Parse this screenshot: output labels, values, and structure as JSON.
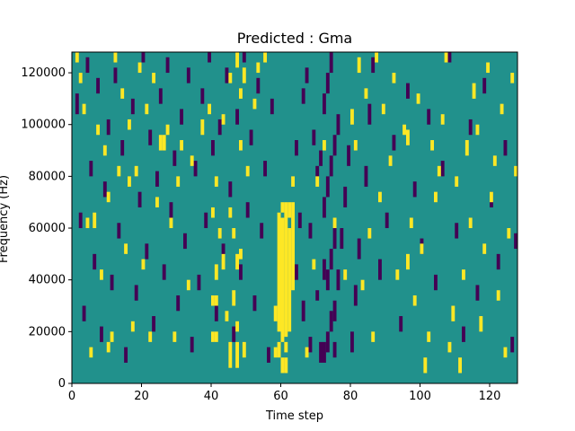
{
  "chart_data": {
    "type": "heatmap",
    "title": "Predicted : Gma",
    "xlabel": "Time step",
    "ylabel": "Frequency (Hz)",
    "xlim": [
      0,
      128
    ],
    "ylim": [
      0,
      128000
    ],
    "x_ticks": [
      0,
      20,
      40,
      60,
      80,
      100,
      120
    ],
    "x_tick_labels": [
      "0",
      "20",
      "40",
      "60",
      "80",
      "100",
      "120"
    ],
    "y_ticks": [
      0,
      20000,
      40000,
      60000,
      80000,
      100000,
      120000
    ],
    "y_tick_labels": [
      "0",
      "20000",
      "40000",
      "60000",
      "80000",
      "100000",
      "120000"
    ],
    "grid": false,
    "legend": "none",
    "colormap": "viridis",
    "values_description": "binary mask: background 0 (teal), predicted positive +1 (yellow), predicted negative -1 (purple)",
    "colors": {
      "background": "#21918c",
      "high": "#fde725",
      "low": "#440154"
    },
    "grid_shape": {
      "time_steps": 128,
      "frequency_bins": 64,
      "bin_hz": 2000
    },
    "high_cells": [
      [
        60,
        2,
        5
      ],
      [
        61,
        2,
        5
      ],
      [
        61,
        6,
        8
      ],
      [
        61,
        9,
        35
      ],
      [
        62,
        10,
        30
      ],
      [
        62,
        32,
        35
      ],
      [
        60,
        8,
        32
      ],
      [
        59,
        5,
        8
      ],
      [
        59,
        10,
        33
      ],
      [
        58,
        5,
        7
      ],
      [
        58,
        12,
        15
      ],
      [
        63,
        18,
        35
      ],
      [
        63,
        38,
        40
      ],
      [
        60,
        33,
        35
      ],
      [
        40,
        8,
        10
      ],
      [
        41,
        8,
        10
      ],
      [
        40,
        15,
        17
      ],
      [
        41,
        15,
        17
      ],
      [
        44,
        12,
        14
      ],
      [
        45,
        3,
        8
      ],
      [
        46,
        15,
        18
      ],
      [
        47,
        3,
        8
      ],
      [
        49,
        5,
        8
      ],
      [
        47,
        22,
        25
      ],
      [
        48,
        24,
        26
      ],
      [
        41,
        20,
        23
      ],
      [
        42,
        28,
        30
      ],
      [
        43,
        22,
        25
      ],
      [
        45,
        32,
        34
      ],
      [
        46,
        28,
        30
      ],
      [
        47,
        10,
        12
      ],
      [
        37,
        48,
        51
      ],
      [
        39,
        52,
        54
      ],
      [
        40,
        32,
        34
      ],
      [
        41,
        38,
        40
      ],
      [
        43,
        50,
        52
      ],
      [
        45,
        58,
        60
      ],
      [
        47,
        61,
        64
      ],
      [
        48,
        55,
        57
      ],
      [
        48,
        45,
        47
      ],
      [
        49,
        58,
        61
      ],
      [
        50,
        40,
        42
      ],
      [
        52,
        53,
        55
      ],
      [
        53,
        60,
        62
      ],
      [
        55,
        62,
        64
      ],
      [
        4,
        30,
        32
      ],
      [
        5,
        5,
        7
      ],
      [
        6,
        30,
        33
      ],
      [
        8,
        20,
        22
      ],
      [
        10,
        35,
        37
      ],
      [
        11,
        8,
        10
      ],
      [
        15,
        25,
        27
      ],
      [
        17,
        10,
        12
      ],
      [
        18,
        40,
        42
      ],
      [
        20,
        22,
        24
      ],
      [
        22,
        8,
        10
      ],
      [
        24,
        34,
        36
      ],
      [
        25,
        45,
        48
      ],
      [
        26,
        45,
        48
      ],
      [
        27,
        48,
        50
      ],
      [
        28,
        30,
        32
      ],
      [
        29,
        8,
        10
      ],
      [
        30,
        38,
        40
      ],
      [
        31,
        45,
        47
      ],
      [
        33,
        18,
        20
      ],
      [
        34,
        42,
        44
      ],
      [
        10,
        6,
        8
      ],
      [
        12,
        62,
        64
      ],
      [
        14,
        55,
        57
      ],
      [
        16,
        49,
        51
      ],
      [
        19,
        60,
        62
      ],
      [
        21,
        52,
        54
      ],
      [
        23,
        58,
        60
      ],
      [
        1,
        62,
        64
      ],
      [
        2,
        58,
        60
      ],
      [
        3,
        52,
        54
      ],
      [
        7,
        48,
        50
      ],
      [
        9,
        44,
        46
      ],
      [
        13,
        40,
        42
      ],
      [
        16,
        38,
        40
      ],
      [
        67,
        5,
        7
      ],
      [
        69,
        22,
        24
      ],
      [
        70,
        38,
        40
      ],
      [
        72,
        45,
        47
      ],
      [
        75,
        30,
        32
      ],
      [
        78,
        20,
        22
      ],
      [
        81,
        45,
        47
      ],
      [
        83,
        18,
        20
      ],
      [
        85,
        28,
        30
      ],
      [
        86,
        8,
        10
      ],
      [
        88,
        35,
        37
      ],
      [
        91,
        42,
        44
      ],
      [
        93,
        20,
        22
      ],
      [
        95,
        48,
        50
      ],
      [
        97,
        30,
        32
      ],
      [
        80,
        50,
        53
      ],
      [
        82,
        60,
        63
      ],
      [
        84,
        55,
        57
      ],
      [
        87,
        62,
        64
      ],
      [
        89,
        52,
        54
      ],
      [
        92,
        58,
        60
      ],
      [
        96,
        46,
        49
      ],
      [
        99,
        54,
        56
      ],
      [
        98,
        15,
        17
      ],
      [
        100,
        25,
        27
      ],
      [
        102,
        8,
        10
      ],
      [
        104,
        35,
        37
      ],
      [
        105,
        40,
        42
      ],
      [
        106,
        50,
        52
      ],
      [
        107,
        62,
        64
      ],
      [
        108,
        6,
        8
      ],
      [
        109,
        12,
        15
      ],
      [
        110,
        38,
        40
      ],
      [
        111,
        2,
        5
      ],
      [
        112,
        20,
        22
      ],
      [
        113,
        44,
        47
      ],
      [
        114,
        30,
        32
      ],
      [
        115,
        55,
        58
      ],
      [
        116,
        48,
        50
      ],
      [
        118,
        25,
        27
      ],
      [
        119,
        60,
        62
      ],
      [
        120,
        35,
        37
      ],
      [
        121,
        42,
        44
      ],
      [
        122,
        16,
        18
      ],
      [
        123,
        52,
        54
      ],
      [
        124,
        5,
        7
      ],
      [
        125,
        28,
        30
      ],
      [
        126,
        58,
        60
      ],
      [
        127,
        40,
        42
      ],
      [
        96,
        22,
        25
      ],
      [
        101,
        2,
        5
      ],
      [
        103,
        45,
        47
      ],
      [
        117,
        10,
        13
      ]
    ],
    "low_cells": [
      [
        71,
        4,
        8
      ],
      [
        72,
        4,
        8
      ],
      [
        73,
        6,
        10
      ],
      [
        74,
        10,
        14
      ],
      [
        75,
        12,
        16
      ],
      [
        70,
        16,
        18
      ],
      [
        73,
        18,
        22
      ],
      [
        74,
        22,
        26
      ],
      [
        75,
        26,
        30
      ],
      [
        72,
        32,
        36
      ],
      [
        73,
        36,
        40
      ],
      [
        74,
        40,
        44
      ],
      [
        75,
        44,
        48
      ],
      [
        76,
        48,
        52
      ],
      [
        72,
        52,
        56
      ],
      [
        73,
        56,
        60
      ],
      [
        74,
        60,
        64
      ],
      [
        70,
        40,
        42
      ],
      [
        71,
        42,
        45
      ],
      [
        72,
        20,
        24
      ],
      [
        75,
        5,
        8
      ],
      [
        76,
        18,
        22
      ],
      [
        77,
        26,
        30
      ],
      [
        78,
        34,
        38
      ],
      [
        79,
        42,
        46
      ],
      [
        68,
        28,
        31
      ],
      [
        69,
        46,
        49
      ],
      [
        67,
        58,
        61
      ],
      [
        66,
        12,
        16
      ],
      [
        65,
        30,
        33
      ],
      [
        80,
        6,
        10
      ],
      [
        81,
        15,
        19
      ],
      [
        82,
        24,
        28
      ],
      [
        84,
        38,
        42
      ],
      [
        85,
        50,
        54
      ],
      [
        86,
        60,
        63
      ],
      [
        88,
        20,
        24
      ],
      [
        90,
        30,
        33
      ],
      [
        92,
        45,
        48
      ],
      [
        94,
        10,
        13
      ],
      [
        96,
        55,
        58
      ],
      [
        98,
        36,
        39
      ],
      [
        100,
        25,
        28
      ],
      [
        102,
        50,
        53
      ],
      [
        104,
        18,
        21
      ],
      [
        106,
        40,
        43
      ],
      [
        108,
        62,
        64
      ],
      [
        110,
        28,
        31
      ],
      [
        112,
        8,
        11
      ],
      [
        114,
        48,
        51
      ],
      [
        116,
        16,
        19
      ],
      [
        118,
        56,
        59
      ],
      [
        120,
        34,
        37
      ],
      [
        122,
        22,
        25
      ],
      [
        124,
        44,
        47
      ],
      [
        126,
        6,
        9
      ],
      [
        127,
        26,
        29
      ],
      [
        1,
        52,
        56
      ],
      [
        2,
        30,
        33
      ],
      [
        3,
        12,
        15
      ],
      [
        4,
        60,
        63
      ],
      [
        5,
        40,
        43
      ],
      [
        6,
        22,
        25
      ],
      [
        7,
        56,
        59
      ],
      [
        8,
        8,
        11
      ],
      [
        9,
        36,
        39
      ],
      [
        10,
        48,
        51
      ],
      [
        11,
        18,
        21
      ],
      [
        12,
        58,
        61
      ],
      [
        13,
        28,
        31
      ],
      [
        14,
        44,
        47
      ],
      [
        15,
        4,
        7
      ],
      [
        17,
        52,
        55
      ],
      [
        18,
        16,
        19
      ],
      [
        19,
        34,
        37
      ],
      [
        20,
        62,
        64
      ],
      [
        21,
        24,
        27
      ],
      [
        22,
        46,
        49
      ],
      [
        23,
        10,
        13
      ],
      [
        24,
        38,
        41
      ],
      [
        25,
        54,
        57
      ],
      [
        26,
        20,
        23
      ],
      [
        27,
        60,
        63
      ],
      [
        28,
        32,
        35
      ],
      [
        29,
        42,
        45
      ],
      [
        30,
        14,
        17
      ],
      [
        31,
        50,
        53
      ],
      [
        32,
        26,
        29
      ],
      [
        33,
        58,
        61
      ],
      [
        34,
        6,
        9
      ],
      [
        35,
        40,
        43
      ],
      [
        36,
        18,
        21
      ],
      [
        37,
        54,
        57
      ],
      [
        38,
        30,
        33
      ],
      [
        39,
        62,
        64
      ],
      [
        40,
        44,
        47
      ],
      [
        41,
        12,
        15
      ],
      [
        42,
        48,
        51
      ],
      [
        43,
        24,
        27
      ],
      [
        44,
        58,
        61
      ],
      [
        45,
        36,
        39
      ],
      [
        46,
        8,
        11
      ],
      [
        47,
        50,
        53
      ],
      [
        48,
        20,
        23
      ],
      [
        49,
        62,
        64
      ],
      [
        50,
        32,
        35
      ],
      [
        51,
        46,
        49
      ],
      [
        52,
        14,
        17
      ],
      [
        53,
        56,
        59
      ],
      [
        54,
        28,
        31
      ],
      [
        55,
        40,
        43
      ],
      [
        56,
        4,
        7
      ],
      [
        57,
        52,
        55
      ],
      [
        64,
        44,
        47
      ],
      [
        66,
        54,
        57
      ],
      [
        68,
        6,
        9
      ],
      [
        64,
        20,
        23
      ]
    ]
  }
}
